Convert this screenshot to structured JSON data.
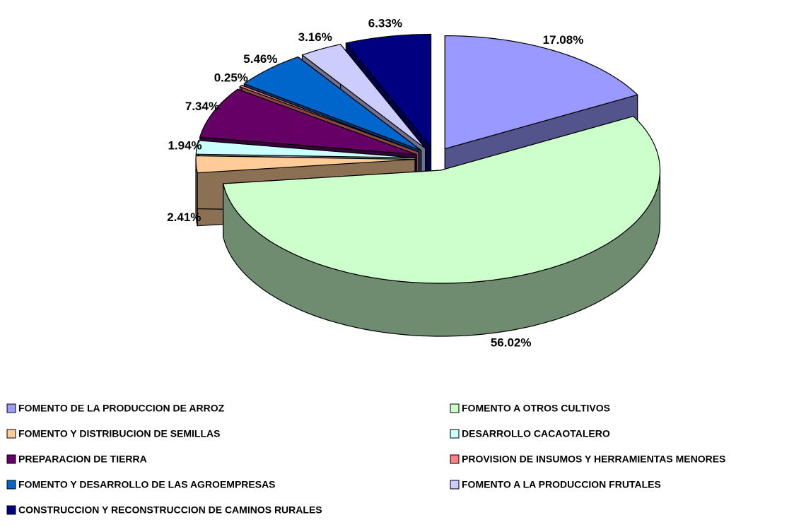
{
  "chart_data": {
    "type": "pie3d",
    "categories": [
      "FOMENTO DE LA PRODUCCION DE ARROZ",
      "FOMENTO A OTROS CULTIVOS",
      "FOMENTO Y DISTRIBUCION DE SEMILLAS",
      "DESARROLLO CACAOTALERO",
      "PREPARACION DE TIERRA",
      "PROVISION DE INSUMOS Y HERRAMIENTAS MENORES",
      "FOMENTO Y DESARROLLO DE LAS AGROEMPRESAS",
      "FOMENTO A LA PRODUCCION FRUTALES",
      "CONSTRUCCION Y RECONSTRUCCION DE CAMINOS RURALES"
    ],
    "values": [
      17.08,
      56.02,
      2.41,
      1.94,
      7.34,
      0.25,
      5.46,
      3.16,
      6.33
    ],
    "value_labels": [
      "17.08%",
      "56.02%",
      "2.41%",
      "1.94%",
      "7.34%",
      "0.25%",
      "5.46%",
      "3.16%",
      "6.33%"
    ],
    "colors": [
      "#9999ff",
      "#ccffcc",
      "#ffcc99",
      "#ccffff",
      "#660066",
      "#ff8080",
      "#0066cc",
      "#ccccff",
      "#000080"
    ]
  }
}
